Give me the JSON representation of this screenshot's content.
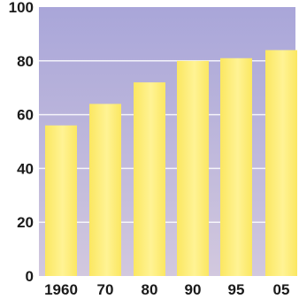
{
  "chart_data": {
    "type": "bar",
    "title": "",
    "xlabel": "",
    "ylabel": "",
    "categories": [
      "1960",
      "70",
      "80",
      "90",
      "95",
      "05"
    ],
    "values": [
      56,
      64,
      72,
      80,
      81,
      84
    ],
    "ylim": [
      0,
      100
    ],
    "yticks": [
      "0",
      "20",
      "40",
      "60",
      "80",
      "100"
    ],
    "grid": true,
    "legend": "none",
    "colors": {
      "plot_background_top": "#a9a6d9",
      "plot_background_bottom": "#d2c8de",
      "bar_fill": "#fbe761",
      "bar_fill_light": "#fff394",
      "gridline": "#ffffff",
      "text": "#1a1a1a"
    }
  }
}
